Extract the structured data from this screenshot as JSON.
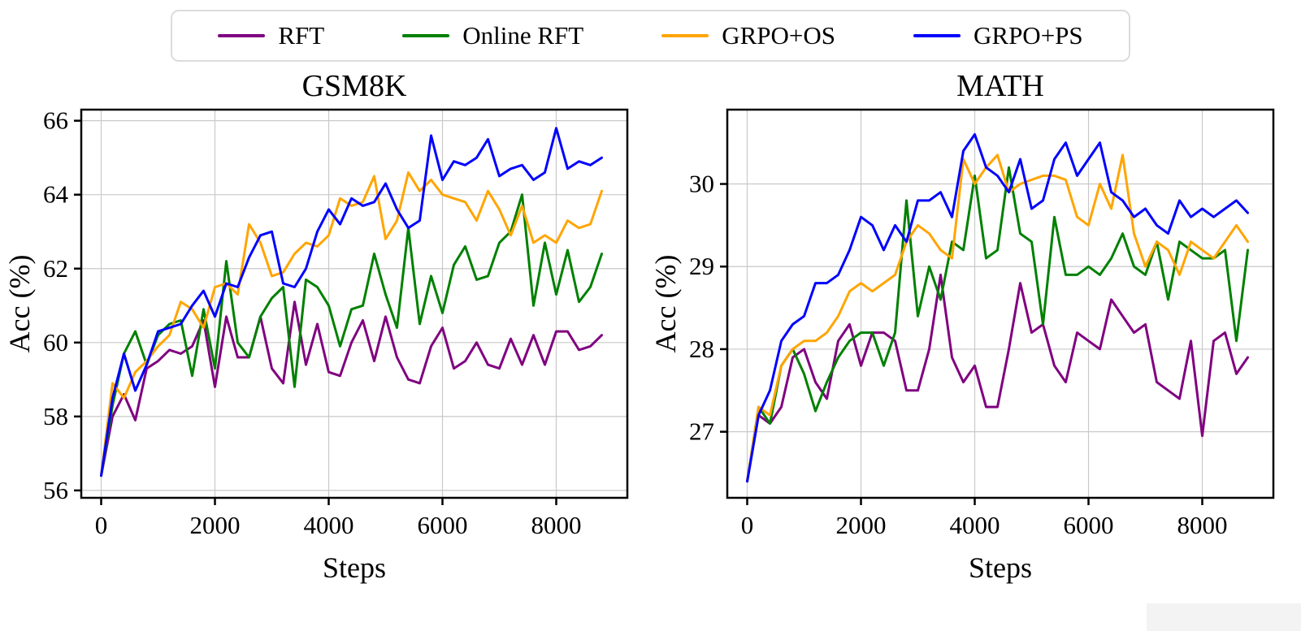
{
  "page": {
    "background": "#ffffff"
  },
  "legend": {
    "items": [
      {
        "label": "RFT",
        "color": "#800080"
      },
      {
        "label": "Online RFT",
        "color": "#008000"
      },
      {
        "label": "GRPO+OS",
        "color": "#FFA500"
      },
      {
        "label": "GRPO+PS",
        "color": "#0000FF"
      }
    ]
  },
  "chart_data": [
    {
      "type": "line",
      "title": "GSM8K",
      "xlabel": "Steps",
      "ylabel": "Acc (%)",
      "xlim": [
        -350,
        9250
      ],
      "ylim": [
        55.8,
        66.3
      ],
      "xticks": [
        0,
        2000,
        4000,
        6000,
        8000
      ],
      "yticks": [
        56,
        58,
        60,
        62,
        64,
        66
      ],
      "grid": true,
      "legend_position": "top-outside",
      "x": [
        0,
        200,
        400,
        600,
        800,
        1000,
        1200,
        1400,
        1600,
        1800,
        2000,
        2200,
        2400,
        2600,
        2800,
        3000,
        3200,
        3400,
        3600,
        3800,
        4000,
        4200,
        4400,
        4600,
        4800,
        5000,
        5200,
        5400,
        5600,
        5800,
        6000,
        6200,
        6400,
        6600,
        6800,
        7000,
        7200,
        7400,
        7600,
        7800,
        8000,
        8200,
        8400,
        8600,
        8800
      ],
      "series": [
        {
          "name": "RFT",
          "color": "#800080",
          "values": [
            56.4,
            58.0,
            58.6,
            57.9,
            59.3,
            59.5,
            59.8,
            59.7,
            59.9,
            60.6,
            58.8,
            60.7,
            59.6,
            59.6,
            60.7,
            59.3,
            58.9,
            61.1,
            59.4,
            60.5,
            59.2,
            59.1,
            60.0,
            60.6,
            59.5,
            60.7,
            59.6,
            59.0,
            58.9,
            59.9,
            60.4,
            59.3,
            59.5,
            60.0,
            59.4,
            59.3,
            60.1,
            59.4,
            60.2,
            59.4,
            60.3,
            60.3,
            59.8,
            59.9,
            60.2
          ]
        },
        {
          "name": "Online RFT",
          "color": "#008000",
          "values": [
            56.4,
            58.3,
            59.7,
            60.3,
            59.4,
            60.2,
            60.5,
            60.6,
            59.1,
            60.9,
            59.3,
            62.2,
            60.0,
            59.6,
            60.7,
            61.2,
            61.5,
            58.8,
            61.7,
            61.5,
            61.0,
            59.9,
            60.9,
            61.0,
            62.4,
            61.3,
            60.4,
            63.1,
            60.5,
            61.8,
            60.8,
            62.1,
            62.6,
            61.7,
            61.8,
            62.7,
            63.0,
            64.0,
            61.0,
            62.7,
            61.3,
            62.5,
            61.1,
            61.5,
            62.4
          ]
        },
        {
          "name": "GRPO+OS",
          "color": "#FFA500",
          "values": [
            56.4,
            58.9,
            58.5,
            59.2,
            59.5,
            59.9,
            60.2,
            61.1,
            60.9,
            60.4,
            61.5,
            61.6,
            61.3,
            63.2,
            62.7,
            61.8,
            61.9,
            62.4,
            62.7,
            62.6,
            62.9,
            63.9,
            63.7,
            63.8,
            64.5,
            62.8,
            63.3,
            64.6,
            64.1,
            64.4,
            64.0,
            63.9,
            63.8,
            63.3,
            64.1,
            63.6,
            62.9,
            63.7,
            62.7,
            62.9,
            62.7,
            63.3,
            63.1,
            63.2,
            64.1
          ]
        },
        {
          "name": "GRPO+PS",
          "color": "#0000FF",
          "values": [
            56.4,
            58.5,
            59.7,
            58.7,
            59.4,
            60.3,
            60.4,
            60.5,
            61.0,
            61.4,
            60.7,
            61.6,
            61.5,
            62.3,
            62.9,
            63.0,
            61.6,
            61.5,
            62.0,
            63.0,
            63.6,
            63.2,
            63.9,
            63.7,
            63.8,
            64.3,
            63.6,
            63.1,
            63.3,
            65.6,
            64.4,
            64.9,
            64.8,
            65.0,
            65.5,
            64.5,
            64.7,
            64.8,
            64.4,
            64.6,
            65.8,
            64.7,
            64.9,
            64.8,
            65.0
          ]
        }
      ]
    },
    {
      "type": "line",
      "title": "MATH",
      "xlabel": "Steps",
      "ylabel": "Acc (%)",
      "xlim": [
        -350,
        9250
      ],
      "ylim": [
        26.2,
        30.9
      ],
      "xticks": [
        0,
        2000,
        4000,
        6000,
        8000
      ],
      "yticks": [
        27,
        28,
        29,
        30
      ],
      "grid": true,
      "legend_position": "top-outside",
      "x": [
        0,
        200,
        400,
        600,
        800,
        1000,
        1200,
        1400,
        1600,
        1800,
        2000,
        2200,
        2400,
        2600,
        2800,
        3000,
        3200,
        3400,
        3600,
        3800,
        4000,
        4200,
        4400,
        4600,
        4800,
        5000,
        5200,
        5400,
        5600,
        5800,
        6000,
        6200,
        6400,
        6600,
        6800,
        7000,
        7200,
        7400,
        7600,
        7800,
        8000,
        8200,
        8400,
        8600,
        8800
      ],
      "series": [
        {
          "name": "RFT",
          "color": "#800080",
          "values": [
            26.4,
            27.2,
            27.1,
            27.3,
            27.9,
            28.0,
            27.6,
            27.4,
            28.1,
            28.3,
            27.8,
            28.2,
            28.2,
            28.1,
            27.5,
            27.5,
            28.0,
            28.9,
            27.9,
            27.6,
            27.8,
            27.3,
            27.3,
            28.0,
            28.8,
            28.2,
            28.3,
            27.8,
            27.6,
            28.2,
            28.1,
            28.0,
            28.6,
            28.4,
            28.2,
            28.3,
            27.6,
            27.5,
            27.4,
            28.1,
            26.95,
            28.1,
            28.2,
            27.7,
            27.9
          ]
        },
        {
          "name": "Online RFT",
          "color": "#008000",
          "values": [
            26.4,
            27.3,
            27.1,
            27.8,
            28.0,
            27.7,
            27.25,
            27.6,
            27.9,
            28.1,
            28.2,
            28.2,
            27.8,
            28.2,
            29.8,
            28.4,
            29.0,
            28.6,
            29.3,
            29.2,
            30.1,
            29.1,
            29.2,
            30.2,
            29.4,
            29.3,
            28.3,
            29.6,
            28.9,
            28.9,
            29.0,
            28.9,
            29.1,
            29.4,
            29.0,
            28.9,
            29.3,
            28.6,
            29.3,
            29.2,
            29.1,
            29.1,
            29.2,
            28.1,
            29.2
          ]
        },
        {
          "name": "GRPO+OS",
          "color": "#FFA500",
          "values": [
            26.4,
            27.3,
            27.2,
            27.8,
            28.0,
            28.1,
            28.1,
            28.2,
            28.4,
            28.7,
            28.8,
            28.7,
            28.8,
            28.9,
            29.3,
            29.5,
            29.4,
            29.2,
            29.1,
            30.3,
            30.0,
            30.2,
            30.35,
            29.9,
            30.0,
            30.05,
            30.1,
            30.1,
            30.05,
            29.6,
            29.5,
            30.0,
            29.7,
            30.35,
            29.4,
            29.0,
            29.3,
            29.2,
            28.9,
            29.3,
            29.2,
            29.1,
            29.3,
            29.5,
            29.3
          ]
        },
        {
          "name": "GRPO+PS",
          "color": "#0000FF",
          "values": [
            26.4,
            27.2,
            27.5,
            28.1,
            28.3,
            28.4,
            28.8,
            28.8,
            28.9,
            29.2,
            29.6,
            29.5,
            29.2,
            29.5,
            29.3,
            29.8,
            29.8,
            29.9,
            29.6,
            30.4,
            30.6,
            30.2,
            30.1,
            29.9,
            30.3,
            29.7,
            29.8,
            30.3,
            30.5,
            30.1,
            30.3,
            30.5,
            29.9,
            29.8,
            29.6,
            29.7,
            29.5,
            29.4,
            29.8,
            29.6,
            29.7,
            29.6,
            29.7,
            29.8,
            29.65
          ]
        }
      ]
    }
  ]
}
